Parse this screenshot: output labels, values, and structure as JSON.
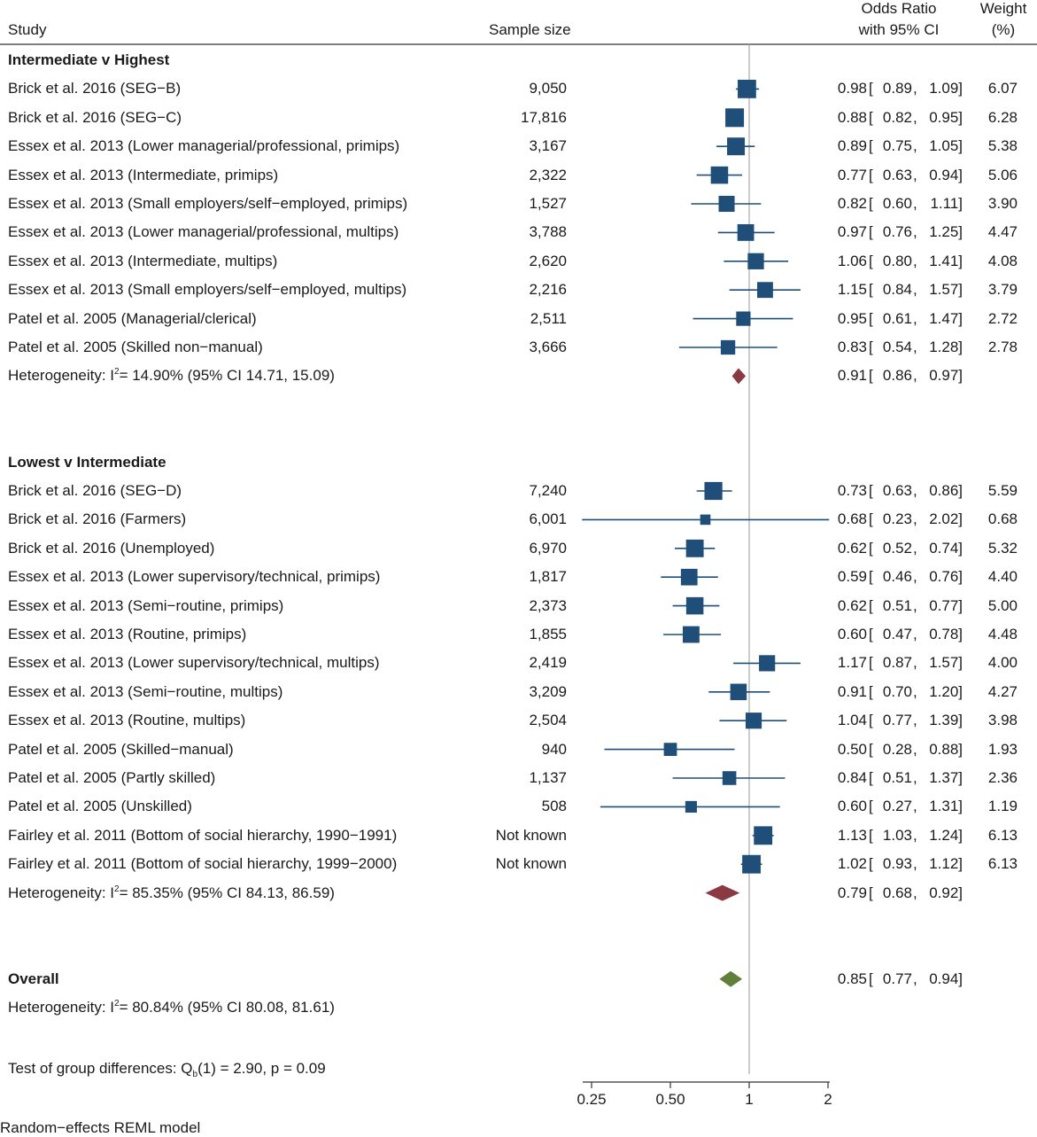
{
  "header": {
    "study": "Study",
    "sample_size": "Sample size",
    "or_line1": "Odds Ratio",
    "or_line2": "with 95% CI",
    "weight_line1": "Weight",
    "weight_line2": "(%)"
  },
  "footer": {
    "test_prefix": "Test of group differences: Q",
    "test_sub": "b",
    "test_suffix": "(1) = 2.90, p = 0.09",
    "model": "Random−effects REML model"
  },
  "chart_data": {
    "type": "forest",
    "x_scale": "log",
    "xlim": [
      0.25,
      2
    ],
    "xticks": [
      "0.25",
      "0.50",
      "1",
      "2"
    ],
    "xtick_values": [
      0.25,
      0.5,
      1,
      2
    ],
    "reference_line": 1,
    "colors": {
      "study_box": "#1f4e79",
      "subgroup_diamond": "#8b3a44",
      "overall_diamond": "#5f7f3a",
      "reference_line": "#999999"
    },
    "groups": [
      {
        "title": "Intermediate v Highest",
        "studies": [
          {
            "label": "Brick et al. 2016 (SEG−B)",
            "n": "9,050",
            "or": 0.98,
            "lo": 0.89,
            "hi": 1.09,
            "or_text": "0.98",
            "lo_text": "0.89",
            "hi_text": "1.09",
            "weight": "6.07"
          },
          {
            "label": "Brick et al. 2016 (SEG−C)",
            "n": "17,816",
            "or": 0.88,
            "lo": 0.82,
            "hi": 0.95,
            "or_text": "0.88",
            "lo_text": "0.82",
            "hi_text": "0.95",
            "weight": "6.28"
          },
          {
            "label": "Essex et al. 2013 (Lower managerial/professional, primips)",
            "n": "3,167",
            "or": 0.89,
            "lo": 0.75,
            "hi": 1.05,
            "or_text": "0.89",
            "lo_text": "0.75",
            "hi_text": "1.05",
            "weight": "5.38"
          },
          {
            "label": "Essex et al. 2013 (Intermediate, primips)",
            "n": "2,322",
            "or": 0.77,
            "lo": 0.63,
            "hi": 0.94,
            "or_text": "0.77",
            "lo_text": "0.63",
            "hi_text": "0.94",
            "weight": "5.06"
          },
          {
            "label": "Essex et al. 2013 (Small employers/self−employed, primips)",
            "n": "1,527",
            "or": 0.82,
            "lo": 0.6,
            "hi": 1.11,
            "or_text": "0.82",
            "lo_text": "0.60",
            "hi_text": "1.11",
            "weight": "3.90"
          },
          {
            "label": "Essex et al. 2013 (Lower managerial/professional, multips)",
            "n": "3,788",
            "or": 0.97,
            "lo": 0.76,
            "hi": 1.25,
            "or_text": "0.97",
            "lo_text": "0.76",
            "hi_text": "1.25",
            "weight": "4.47"
          },
          {
            "label": "Essex et al. 2013 (Intermediate, multips)",
            "n": "2,620",
            "or": 1.06,
            "lo": 0.8,
            "hi": 1.41,
            "or_text": "1.06",
            "lo_text": "0.80",
            "hi_text": "1.41",
            "weight": "4.08"
          },
          {
            "label": "Essex et al. 2013 (Small employers/self−employed, multips)",
            "n": "2,216",
            "or": 1.15,
            "lo": 0.84,
            "hi": 1.57,
            "or_text": "1.15",
            "lo_text": "0.84",
            "hi_text": "1.57",
            "weight": "3.79"
          },
          {
            "label": "Patel et al. 2005 (Managerial/clerical)",
            "n": "2,511",
            "or": 0.95,
            "lo": 0.61,
            "hi": 1.47,
            "or_text": "0.95",
            "lo_text": "0.61",
            "hi_text": "1.47",
            "weight": "2.72"
          },
          {
            "label": "Patel et al. 2005 (Skilled non−manual)",
            "n": "3,666",
            "or": 0.83,
            "lo": 0.54,
            "hi": 1.28,
            "or_text": "0.83",
            "lo_text": "0.54",
            "hi_text": "1.28",
            "weight": "2.78"
          }
        ],
        "summary": {
          "het_prefix": "Heterogeneity: I",
          "het_sup": "2",
          "het_suffix": "= 14.90% (95% CI 14.71, 15.09)",
          "or": 0.91,
          "lo": 0.86,
          "hi": 0.97,
          "or_text": "0.91",
          "lo_text": "0.86",
          "hi_text": "0.97"
        }
      },
      {
        "title": "Lowest v Intermediate",
        "studies": [
          {
            "label": "Brick et al. 2016 (SEG−D)",
            "n": "7,240",
            "or": 0.73,
            "lo": 0.63,
            "hi": 0.86,
            "or_text": "0.73",
            "lo_text": "0.63",
            "hi_text": "0.86",
            "weight": "5.59"
          },
          {
            "label": "Brick et al. 2016 (Farmers)",
            "n": "6,001",
            "or": 0.68,
            "lo": 0.23,
            "hi": 2.02,
            "or_text": "0.68",
            "lo_text": "0.23",
            "hi_text": "2.02",
            "weight": "0.68"
          },
          {
            "label": "Brick et al. 2016 (Unemployed)",
            "n": "6,970",
            "or": 0.62,
            "lo": 0.52,
            "hi": 0.74,
            "or_text": "0.62",
            "lo_text": "0.52",
            "hi_text": "0.74",
            "weight": "5.32"
          },
          {
            "label": "Essex et al. 2013 (Lower supervisory/technical, primips)",
            "n": "1,817",
            "or": 0.59,
            "lo": 0.46,
            "hi": 0.76,
            "or_text": "0.59",
            "lo_text": "0.46",
            "hi_text": "0.76",
            "weight": "4.40"
          },
          {
            "label": "Essex et al. 2013 (Semi−routine, primips)",
            "n": "2,373",
            "or": 0.62,
            "lo": 0.51,
            "hi": 0.77,
            "or_text": "0.62",
            "lo_text": "0.51",
            "hi_text": "0.77",
            "weight": "5.00"
          },
          {
            "label": "Essex et al. 2013 (Routine, primips)",
            "n": "1,855",
            "or": 0.6,
            "lo": 0.47,
            "hi": 0.78,
            "or_text": "0.60",
            "lo_text": "0.47",
            "hi_text": "0.78",
            "weight": "4.48"
          },
          {
            "label": "Essex et al. 2013 (Lower supervisory/technical, multips)",
            "n": "2,419",
            "or": 1.17,
            "lo": 0.87,
            "hi": 1.57,
            "or_text": "1.17",
            "lo_text": "0.87",
            "hi_text": "1.57",
            "weight": "4.00"
          },
          {
            "label": "Essex et al. 2013 (Semi−routine, multips)",
            "n": "3,209",
            "or": 0.91,
            "lo": 0.7,
            "hi": 1.2,
            "or_text": "0.91",
            "lo_text": "0.70",
            "hi_text": "1.20",
            "weight": "4.27"
          },
          {
            "label": "Essex et al. 2013 (Routine, multips)",
            "n": "2,504",
            "or": 1.04,
            "lo": 0.77,
            "hi": 1.39,
            "or_text": "1.04",
            "lo_text": "0.77",
            "hi_text": "1.39",
            "weight": "3.98"
          },
          {
            "label": "Patel et al. 2005 (Skilled−manual)",
            "n": "940",
            "or": 0.5,
            "lo": 0.28,
            "hi": 0.88,
            "or_text": "0.50",
            "lo_text": "0.28",
            "hi_text": "0.88",
            "weight": "1.93"
          },
          {
            "label": "Patel et al. 2005 (Partly skilled)",
            "n": "1,137",
            "or": 0.84,
            "lo": 0.51,
            "hi": 1.37,
            "or_text": "0.84",
            "lo_text": "0.51",
            "hi_text": "1.37",
            "weight": "2.36"
          },
          {
            "label": "Patel et al. 2005 (Unskilled)",
            "n": "508",
            "or": 0.6,
            "lo": 0.27,
            "hi": 1.31,
            "or_text": "0.60",
            "lo_text": "0.27",
            "hi_text": "1.31",
            "weight": "1.19"
          },
          {
            "label": "Fairley et al. 2011 (Bottom of social hierarchy, 1990−1991)",
            "n": "Not known",
            "or": 1.13,
            "lo": 1.03,
            "hi": 1.24,
            "or_text": "1.13",
            "lo_text": "1.03",
            "hi_text": "1.24",
            "weight": "6.13"
          },
          {
            "label": "Fairley et al. 2011 (Bottom of social hierarchy, 1999−2000)",
            "n": "Not known",
            "or": 1.02,
            "lo": 0.93,
            "hi": 1.12,
            "or_text": "1.02",
            "lo_text": "0.93",
            "hi_text": "1.12",
            "weight": "6.13"
          }
        ],
        "summary": {
          "het_prefix": "Heterogeneity: I",
          "het_sup": "2",
          "het_suffix": "= 85.35% (95% CI 84.13, 86.59)",
          "or": 0.79,
          "lo": 0.68,
          "hi": 0.92,
          "or_text": "0.79",
          "lo_text": "0.68",
          "hi_text": "0.92"
        }
      }
    ],
    "overall": {
      "title": "Overall",
      "or": 0.85,
      "lo": 0.77,
      "hi": 0.94,
      "or_text": "0.85",
      "lo_text": "0.77",
      "hi_text": "0.94",
      "het_prefix": "Heterogeneity: I",
      "het_sup": "2",
      "het_suffix": "= 80.84% (95% CI 80.08, 81.61)"
    }
  }
}
